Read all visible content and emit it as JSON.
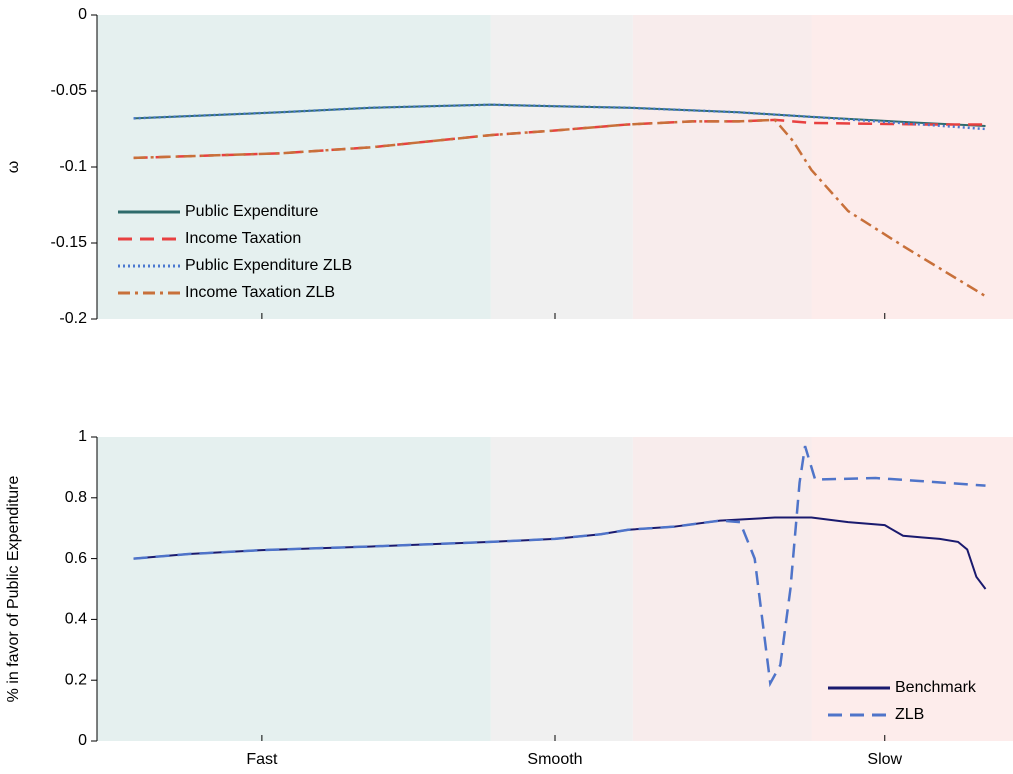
{
  "chart_data": [
    {
      "type": "line",
      "ylabel": "ω",
      "xlim": [
        0,
        100
      ],
      "xticks": [
        18,
        50,
        86
      ],
      "show_xtick_labels": false,
      "ylim": [
        -0.2,
        0
      ],
      "yticks": [
        0,
        -0.05,
        -0.1,
        -0.15,
        -0.2
      ],
      "legend": "lower left",
      "regions": [
        {
          "from": 0,
          "to": 43,
          "color": "#e5f0ef"
        },
        {
          "from": 43,
          "to": 58.5,
          "color": "#f0f0f0"
        },
        {
          "from": 58.5,
          "to": 78,
          "color": "#f8ecec"
        },
        {
          "from": 78,
          "to": 100,
          "color": "#fdeceb"
        }
      ],
      "series": [
        {
          "name": "Public Expenditure",
          "color": "#2e6b6b",
          "dash": "solid",
          "x": [
            4,
            20,
            30,
            43,
            50,
            58,
            70,
            78,
            90,
            97
          ],
          "values": [
            -0.068,
            -0.064,
            -0.061,
            -0.059,
            -0.06,
            -0.061,
            -0.064,
            -0.067,
            -0.071,
            -0.073
          ]
        },
        {
          "name": "Income Taxation",
          "color": "#e84040",
          "dash": "dashed",
          "x": [
            4,
            20,
            30,
            43,
            50,
            58,
            65,
            70,
            74,
            78,
            90,
            97
          ],
          "values": [
            -0.094,
            -0.091,
            -0.087,
            -0.079,
            -0.076,
            -0.072,
            -0.07,
            -0.07,
            -0.069,
            -0.071,
            -0.072,
            -0.072
          ]
        },
        {
          "name": "Public Expenditure ZLB",
          "color": "#4a78d0",
          "dash": "dotted",
          "x": [
            4,
            20,
            30,
            43,
            50,
            58,
            70,
            78,
            90,
            97
          ],
          "values": [
            -0.068,
            -0.064,
            -0.061,
            -0.059,
            -0.06,
            -0.061,
            -0.064,
            -0.067,
            -0.072,
            -0.075
          ]
        },
        {
          "name": "Income Taxation ZLB",
          "color": "#c8703a",
          "dash": "dashdot",
          "x": [
            4,
            20,
            30,
            43,
            50,
            58,
            65,
            70,
            74,
            76,
            78,
            82,
            88,
            97
          ],
          "values": [
            -0.094,
            -0.091,
            -0.087,
            -0.079,
            -0.076,
            -0.072,
            -0.07,
            -0.07,
            -0.069,
            -0.083,
            -0.102,
            -0.129,
            -0.152,
            -0.185
          ]
        }
      ]
    },
    {
      "type": "line",
      "ylabel": "% in favor of Public Expenditure",
      "xlim": [
        0,
        100
      ],
      "xticks": [
        {
          "value": 18,
          "label": "Fast"
        },
        {
          "value": 50,
          "label": "Smooth"
        },
        {
          "value": 86,
          "label": "Slow"
        }
      ],
      "show_xtick_labels": true,
      "ylim": [
        0,
        1
      ],
      "yticks": [
        0,
        0.2,
        0.4,
        0.6,
        0.8,
        1
      ],
      "legend": "lower right",
      "regions": [
        {
          "from": 0,
          "to": 43,
          "color": "#e5f0ef"
        },
        {
          "from": 43,
          "to": 58.5,
          "color": "#f0f0f0"
        },
        {
          "from": 58.5,
          "to": 78,
          "color": "#f8ecec"
        },
        {
          "from": 78,
          "to": 100,
          "color": "#fdeceb"
        }
      ],
      "series": [
        {
          "name": "Benchmark",
          "color": "#1a1a6e",
          "dash": "solid",
          "x": [
            4,
            10,
            18,
            30,
            43,
            50,
            55,
            58,
            63,
            68,
            74,
            78,
            82,
            86,
            88,
            90,
            92,
            94,
            95,
            96,
            97
          ],
          "values": [
            0.6,
            0.615,
            0.628,
            0.64,
            0.655,
            0.665,
            0.68,
            0.695,
            0.705,
            0.725,
            0.735,
            0.735,
            0.72,
            0.71,
            0.675,
            0.67,
            0.665,
            0.655,
            0.63,
            0.54,
            0.5
          ]
        },
        {
          "name": "ZLB",
          "color": "#4f74c9",
          "dash": "dashed",
          "x": [
            4,
            10,
            18,
            30,
            43,
            50,
            55,
            58,
            63,
            68,
            70.2,
            71.8,
            73.5,
            74.6,
            75.7,
            76.7,
            77.3,
            78.4,
            85,
            90,
            97
          ],
          "values": [
            0.6,
            0.615,
            0.628,
            0.64,
            0.655,
            0.665,
            0.68,
            0.695,
            0.705,
            0.725,
            0.72,
            0.6,
            0.19,
            0.25,
            0.5,
            0.85,
            0.97,
            0.86,
            0.865,
            0.855,
            0.84
          ]
        }
      ]
    }
  ]
}
